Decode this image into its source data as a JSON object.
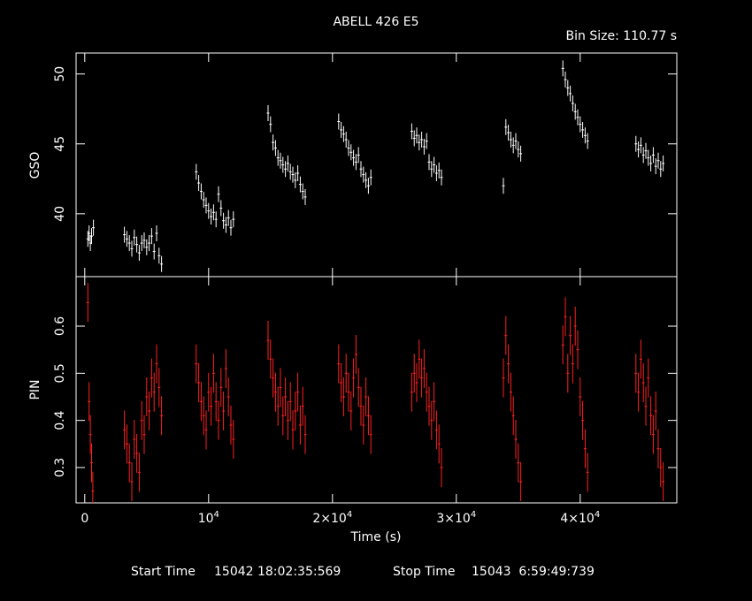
{
  "chart_data": [
    {
      "type": "scatter",
      "panel": "top",
      "title": "ABELL 426 E5",
      "subtitle": "Bin Size: 110.77 s",
      "ylabel": "GSO",
      "xlim": [
        -700,
        47800
      ],
      "ylim": [
        35.5,
        51.5
      ],
      "yticks": [
        40,
        45,
        50
      ],
      "color": "#ffffff",
      "series": [
        {
          "values": [
            {
              "x": 250,
              "y": 38.2
            },
            {
              "x": 350,
              "y": 38.6
            },
            {
              "x": 450,
              "y": 37.9
            },
            {
              "x": 550,
              "y": 38.4
            },
            {
              "x": 700,
              "y": 39.0
            },
            {
              "x": 3200,
              "y": 38.5
            },
            {
              "x": 3400,
              "y": 38.2
            },
            {
              "x": 3600,
              "y": 37.9
            },
            {
              "x": 3800,
              "y": 37.5
            },
            {
              "x": 4000,
              "y": 38.3
            },
            {
              "x": 4200,
              "y": 37.8
            },
            {
              "x": 4400,
              "y": 37.2
            },
            {
              "x": 4600,
              "y": 37.9
            },
            {
              "x": 4800,
              "y": 38.1
            },
            {
              "x": 5000,
              "y": 37.6
            },
            {
              "x": 5200,
              "y": 37.9
            },
            {
              "x": 5400,
              "y": 38.4
            },
            {
              "x": 5600,
              "y": 37.3
            },
            {
              "x": 5800,
              "y": 38.6
            },
            {
              "x": 6000,
              "y": 37.0
            },
            {
              "x": 6200,
              "y": 36.4
            },
            {
              "x": 9000,
              "y": 43.0
            },
            {
              "x": 9200,
              "y": 42.2
            },
            {
              "x": 9400,
              "y": 41.6
            },
            {
              "x": 9600,
              "y": 41.0
            },
            {
              "x": 9800,
              "y": 40.6
            },
            {
              "x": 10000,
              "y": 40.2
            },
            {
              "x": 10200,
              "y": 39.8
            },
            {
              "x": 10400,
              "y": 40.1
            },
            {
              "x": 10600,
              "y": 39.6
            },
            {
              "x": 10800,
              "y": 41.4
            },
            {
              "x": 11000,
              "y": 40.4
            },
            {
              "x": 11200,
              "y": 39.5
            },
            {
              "x": 11400,
              "y": 39.2
            },
            {
              "x": 11600,
              "y": 39.7
            },
            {
              "x": 11800,
              "y": 39.0
            },
            {
              "x": 12000,
              "y": 39.6
            },
            {
              "x": 14800,
              "y": 47.2
            },
            {
              "x": 15000,
              "y": 46.4
            },
            {
              "x": 15200,
              "y": 45.1
            },
            {
              "x": 15400,
              "y": 44.7
            },
            {
              "x": 15600,
              "y": 44.0
            },
            {
              "x": 15800,
              "y": 43.8
            },
            {
              "x": 16000,
              "y": 43.5
            },
            {
              "x": 16200,
              "y": 43.2
            },
            {
              "x": 16400,
              "y": 43.6
            },
            {
              "x": 16600,
              "y": 43.0
            },
            {
              "x": 16800,
              "y": 42.8
            },
            {
              "x": 17000,
              "y": 42.4
            },
            {
              "x": 17200,
              "y": 42.9
            },
            {
              "x": 17400,
              "y": 42.1
            },
            {
              "x": 17600,
              "y": 41.6
            },
            {
              "x": 17800,
              "y": 41.2
            },
            {
              "x": 20500,
              "y": 46.6
            },
            {
              "x": 20700,
              "y": 46.0
            },
            {
              "x": 20900,
              "y": 45.7
            },
            {
              "x": 21100,
              "y": 45.3
            },
            {
              "x": 21300,
              "y": 44.7
            },
            {
              "x": 21500,
              "y": 44.4
            },
            {
              "x": 21700,
              "y": 44.0
            },
            {
              "x": 21900,
              "y": 43.7
            },
            {
              "x": 22100,
              "y": 44.2
            },
            {
              "x": 22300,
              "y": 43.2
            },
            {
              "x": 22500,
              "y": 42.8
            },
            {
              "x": 22700,
              "y": 42.4
            },
            {
              "x": 22900,
              "y": 42.0
            },
            {
              "x": 23100,
              "y": 42.6
            },
            {
              "x": 26400,
              "y": 45.9
            },
            {
              "x": 26600,
              "y": 45.4
            },
            {
              "x": 26800,
              "y": 45.6
            },
            {
              "x": 27000,
              "y": 45.1
            },
            {
              "x": 27200,
              "y": 45.3
            },
            {
              "x": 27400,
              "y": 44.8
            },
            {
              "x": 27600,
              "y": 45.2
            },
            {
              "x": 27800,
              "y": 43.7
            },
            {
              "x": 28000,
              "y": 43.2
            },
            {
              "x": 28200,
              "y": 43.5
            },
            {
              "x": 28400,
              "y": 42.9
            },
            {
              "x": 28600,
              "y": 43.1
            },
            {
              "x": 28800,
              "y": 42.6
            },
            {
              "x": 33800,
              "y": 42.0
            },
            {
              "x": 34000,
              "y": 46.2
            },
            {
              "x": 34200,
              "y": 45.8
            },
            {
              "x": 34400,
              "y": 45.3
            },
            {
              "x": 34600,
              "y": 44.9
            },
            {
              "x": 34800,
              "y": 45.2
            },
            {
              "x": 35000,
              "y": 44.6
            },
            {
              "x": 35200,
              "y": 44.3
            },
            {
              "x": 38600,
              "y": 50.4
            },
            {
              "x": 38800,
              "y": 49.6
            },
            {
              "x": 39000,
              "y": 49.0
            },
            {
              "x": 39200,
              "y": 48.6
            },
            {
              "x": 39400,
              "y": 47.9
            },
            {
              "x": 39600,
              "y": 47.3
            },
            {
              "x": 39800,
              "y": 46.9
            },
            {
              "x": 40000,
              "y": 46.4
            },
            {
              "x": 40200,
              "y": 46.0
            },
            {
              "x": 40400,
              "y": 45.6
            },
            {
              "x": 40600,
              "y": 45.2
            },
            {
              "x": 44500,
              "y": 45.0
            },
            {
              "x": 44700,
              "y": 44.6
            },
            {
              "x": 44900,
              "y": 44.9
            },
            {
              "x": 45100,
              "y": 44.2
            },
            {
              "x": 45300,
              "y": 44.5
            },
            {
              "x": 45500,
              "y": 44.0
            },
            {
              "x": 45700,
              "y": 43.6
            },
            {
              "x": 45900,
              "y": 44.2
            },
            {
              "x": 46100,
              "y": 43.4
            },
            {
              "x": 46300,
              "y": 43.8
            },
            {
              "x": 46500,
              "y": 43.2
            },
            {
              "x": 46700,
              "y": 43.6
            }
          ]
        }
      ]
    },
    {
      "type": "scatter",
      "panel": "bottom",
      "ylabel": "PIN",
      "xlabel": "Time (s)",
      "xlim": [
        -700,
        47800
      ],
      "ylim": [
        0.225,
        0.705
      ],
      "yticks": [
        0.3,
        0.4,
        0.5,
        0.6
      ],
      "xticks": [
        {
          "value": 0,
          "label": "0",
          "exp": ""
        },
        {
          "value": 10000,
          "label": "10",
          "exp": "4"
        },
        {
          "value": 20000,
          "label": "2×10",
          "exp": "4"
        },
        {
          "value": 30000,
          "label": "3×10",
          "exp": "4"
        },
        {
          "value": 40000,
          "label": "4×10",
          "exp": "4"
        }
      ],
      "color": "#ff2020",
      "series": [
        {
          "values": [
            {
              "x": 250,
              "y": 0.65
            },
            {
              "x": 350,
              "y": 0.44
            },
            {
              "x": 450,
              "y": 0.37
            },
            {
              "x": 550,
              "y": 0.31
            },
            {
              "x": 650,
              "y": 0.25
            },
            {
              "x": 3200,
              "y": 0.38
            },
            {
              "x": 3400,
              "y": 0.35
            },
            {
              "x": 3600,
              "y": 0.31
            },
            {
              "x": 3800,
              "y": 0.27
            },
            {
              "x": 4000,
              "y": 0.36
            },
            {
              "x": 4200,
              "y": 0.33
            },
            {
              "x": 4400,
              "y": 0.29
            },
            {
              "x": 4600,
              "y": 0.4
            },
            {
              "x": 4800,
              "y": 0.37
            },
            {
              "x": 5000,
              "y": 0.45
            },
            {
              "x": 5200,
              "y": 0.42
            },
            {
              "x": 5400,
              "y": 0.49
            },
            {
              "x": 5600,
              "y": 0.46
            },
            {
              "x": 5800,
              "y": 0.52
            },
            {
              "x": 6000,
              "y": 0.47
            },
            {
              "x": 6200,
              "y": 0.41
            },
            {
              "x": 9000,
              "y": 0.52
            },
            {
              "x": 9200,
              "y": 0.48
            },
            {
              "x": 9400,
              "y": 0.44
            },
            {
              "x": 9600,
              "y": 0.41
            },
            {
              "x": 9800,
              "y": 0.38
            },
            {
              "x": 10000,
              "y": 0.46
            },
            {
              "x": 10200,
              "y": 0.43
            },
            {
              "x": 10400,
              "y": 0.5
            },
            {
              "x": 10600,
              "y": 0.44
            },
            {
              "x": 10800,
              "y": 0.4
            },
            {
              "x": 11000,
              "y": 0.47
            },
            {
              "x": 11200,
              "y": 0.42
            },
            {
              "x": 11400,
              "y": 0.51
            },
            {
              "x": 11600,
              "y": 0.45
            },
            {
              "x": 11800,
              "y": 0.39
            },
            {
              "x": 12000,
              "y": 0.36
            },
            {
              "x": 14800,
              "y": 0.57
            },
            {
              "x": 15000,
              "y": 0.53
            },
            {
              "x": 15200,
              "y": 0.49
            },
            {
              "x": 15400,
              "y": 0.46
            },
            {
              "x": 15600,
              "y": 0.43
            },
            {
              "x": 15800,
              "y": 0.47
            },
            {
              "x": 16000,
              "y": 0.41
            },
            {
              "x": 16200,
              "y": 0.45
            },
            {
              "x": 16400,
              "y": 0.4
            },
            {
              "x": 16600,
              "y": 0.44
            },
            {
              "x": 16800,
              "y": 0.38
            },
            {
              "x": 17000,
              "y": 0.42
            },
            {
              "x": 17200,
              "y": 0.46
            },
            {
              "x": 17400,
              "y": 0.39
            },
            {
              "x": 17600,
              "y": 0.43
            },
            {
              "x": 17800,
              "y": 0.37
            },
            {
              "x": 20500,
              "y": 0.52
            },
            {
              "x": 20700,
              "y": 0.48
            },
            {
              "x": 20900,
              "y": 0.45
            },
            {
              "x": 21100,
              "y": 0.5
            },
            {
              "x": 21300,
              "y": 0.46
            },
            {
              "x": 21500,
              "y": 0.42
            },
            {
              "x": 21700,
              "y": 0.49
            },
            {
              "x": 21900,
              "y": 0.54
            },
            {
              "x": 22100,
              "y": 0.47
            },
            {
              "x": 22300,
              "y": 0.43
            },
            {
              "x": 22500,
              "y": 0.39
            },
            {
              "x": 22700,
              "y": 0.45
            },
            {
              "x": 22900,
              "y": 0.41
            },
            {
              "x": 23100,
              "y": 0.37
            },
            {
              "x": 26400,
              "y": 0.46
            },
            {
              "x": 26600,
              "y": 0.5
            },
            {
              "x": 26800,
              "y": 0.48
            },
            {
              "x": 27000,
              "y": 0.53
            },
            {
              "x": 27200,
              "y": 0.49
            },
            {
              "x": 27400,
              "y": 0.51
            },
            {
              "x": 27600,
              "y": 0.46
            },
            {
              "x": 27800,
              "y": 0.43
            },
            {
              "x": 28000,
              "y": 0.4
            },
            {
              "x": 28200,
              "y": 0.44
            },
            {
              "x": 28400,
              "y": 0.38
            },
            {
              "x": 28600,
              "y": 0.35
            },
            {
              "x": 28800,
              "y": 0.3
            },
            {
              "x": 33800,
              "y": 0.49
            },
            {
              "x": 34000,
              "y": 0.58
            },
            {
              "x": 34200,
              "y": 0.52
            },
            {
              "x": 34400,
              "y": 0.46
            },
            {
              "x": 34600,
              "y": 0.41
            },
            {
              "x": 34800,
              "y": 0.36
            },
            {
              "x": 35000,
              "y": 0.31
            },
            {
              "x": 35200,
              "y": 0.27
            },
            {
              "x": 38600,
              "y": 0.56
            },
            {
              "x": 38800,
              "y": 0.62
            },
            {
              "x": 39000,
              "y": 0.5
            },
            {
              "x": 39200,
              "y": 0.58
            },
            {
              "x": 39400,
              "y": 0.52
            },
            {
              "x": 39600,
              "y": 0.6
            },
            {
              "x": 39800,
              "y": 0.55
            },
            {
              "x": 40000,
              "y": 0.45
            },
            {
              "x": 40200,
              "y": 0.4
            },
            {
              "x": 40400,
              "y": 0.34
            },
            {
              "x": 40600,
              "y": 0.29
            },
            {
              "x": 44500,
              "y": 0.5
            },
            {
              "x": 44700,
              "y": 0.46
            },
            {
              "x": 44900,
              "y": 0.53
            },
            {
              "x": 45100,
              "y": 0.48
            },
            {
              "x": 45300,
              "y": 0.43
            },
            {
              "x": 45500,
              "y": 0.49
            },
            {
              "x": 45700,
              "y": 0.41
            },
            {
              "x": 45900,
              "y": 0.37
            },
            {
              "x": 46100,
              "y": 0.42
            },
            {
              "x": 46300,
              "y": 0.34
            },
            {
              "x": 46500,
              "y": 0.3
            },
            {
              "x": 46700,
              "y": 0.27
            }
          ]
        }
      ]
    }
  ],
  "footer": {
    "start_label": "Start Time",
    "start_value": "15042 18:02:35:569",
    "stop_label": "Stop Time",
    "stop_value": "15043  6:59:49:739"
  }
}
